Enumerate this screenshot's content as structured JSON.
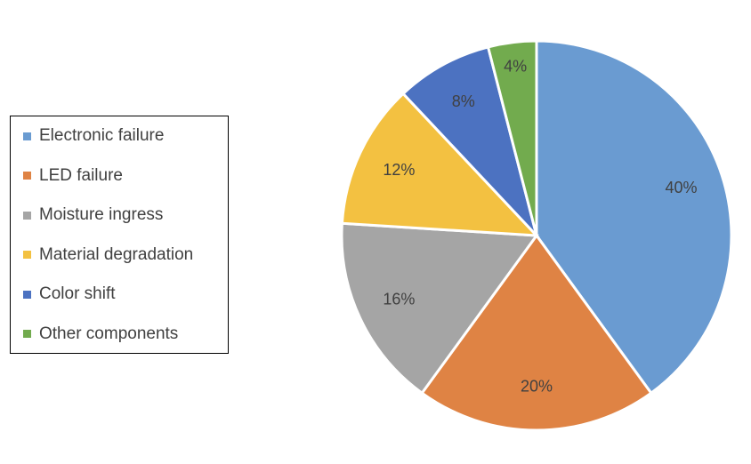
{
  "chart_data": {
    "type": "pie",
    "title": "",
    "categories": [
      "Electronic failure",
      "LED failure",
      "Moisture ingress",
      "Material degradation",
      "Color shift",
      "Other components"
    ],
    "values": [
      40,
      20,
      16,
      12,
      8,
      4
    ],
    "labels": [
      "40%",
      "20%",
      "16%",
      "12%",
      "8%",
      "4%"
    ],
    "colors": [
      "#6A9BD1",
      "#DF8344",
      "#A5A5A5",
      "#F3C141",
      "#4C72C1",
      "#72AB4E"
    ],
    "legend_position": "left",
    "start": "top, clockwise"
  }
}
